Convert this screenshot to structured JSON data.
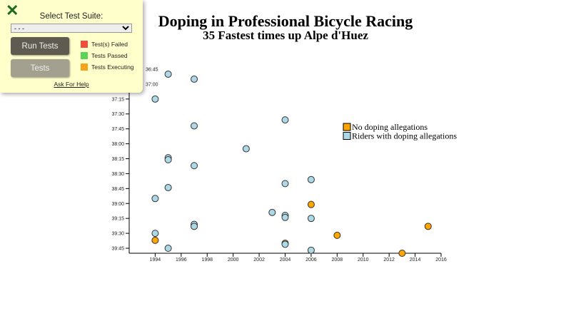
{
  "title": "Doping in Professional Bicycle Racing",
  "subtitle": "35 Fastest times up Alpe d'Huez",
  "test_panel": {
    "close_icon": "x-icon",
    "select_label": "Select Test Suite:",
    "select_value": "- - -",
    "run_label": "Run Tests",
    "tests_label": "Tests",
    "legend": [
      {
        "label": "Test(s) Failed",
        "color": "#f24c3a"
      },
      {
        "label": "Tests Passed",
        "color": "#5bd35b"
      },
      {
        "label": "Tests Executing",
        "color": "#f5a31a"
      }
    ],
    "help_label": "Ask For Help"
  },
  "chart_data": {
    "type": "scatter",
    "title": "Doping in Professional Bicycle Racing",
    "subtitle": "35 Fastest times up Alpe d'Huez",
    "xlim": [
      1992,
      2016
    ],
    "ylim": [
      "36:40",
      "39:50"
    ],
    "y_reversed": true,
    "x_ticks": [
      "1994",
      "1996",
      "1998",
      "2000",
      "2002",
      "2004",
      "2006",
      "2008",
      "2010",
      "2012",
      "2014",
      "2016"
    ],
    "y_ticks": [
      "36:45",
      "37:00",
      "37:15",
      "37:30",
      "37:45",
      "38:00",
      "38:15",
      "38:30",
      "38:45",
      "39:00",
      "39:15",
      "39:30",
      "39:45"
    ],
    "legend_position": "right",
    "legend": [
      {
        "label": "No doping allegations",
        "color": "#ffa500"
      },
      {
        "label": "Riders with doping allegations",
        "color": "#add8e6"
      }
    ],
    "points": [
      {
        "year": 1995,
        "time": "36:50",
        "doping": true
      },
      {
        "year": 1997,
        "time": "36:55",
        "doping": true
      },
      {
        "year": 1994,
        "time": "37:15",
        "doping": true
      },
      {
        "year": 2004,
        "time": "37:36",
        "doping": true
      },
      {
        "year": 1997,
        "time": "37:42",
        "doping": true
      },
      {
        "year": 2001,
        "time": "38:05",
        "doping": true
      },
      {
        "year": 1995,
        "time": "38:14",
        "doping": true
      },
      {
        "year": 1995,
        "time": "38:16",
        "doping": true
      },
      {
        "year": 1997,
        "time": "38:22",
        "doping": true
      },
      {
        "year": 2006,
        "time": "38:36",
        "doping": true
      },
      {
        "year": 2004,
        "time": "38:40",
        "doping": true
      },
      {
        "year": 1995,
        "time": "38:44",
        "doping": true
      },
      {
        "year": 1994,
        "time": "38:55",
        "doping": true
      },
      {
        "year": 2006,
        "time": "39:01",
        "doping": false
      },
      {
        "year": 2003,
        "time": "39:09",
        "doping": true
      },
      {
        "year": 2004,
        "time": "39:12",
        "doping": true
      },
      {
        "year": 2004,
        "time": "39:14",
        "doping": true
      },
      {
        "year": 2006,
        "time": "39:15",
        "doping": true
      },
      {
        "year": 1997,
        "time": "39:21",
        "doping": true
      },
      {
        "year": 1997,
        "time": "39:23",
        "doping": true
      },
      {
        "year": 2015,
        "time": "39:23",
        "doping": false
      },
      {
        "year": 1994,
        "time": "39:30",
        "doping": true
      },
      {
        "year": 2008,
        "time": "39:32",
        "doping": false
      },
      {
        "year": 1994,
        "time": "39:37",
        "doping": false
      },
      {
        "year": 2004,
        "time": "39:40",
        "doping": false
      },
      {
        "year": 2004,
        "time": "39:41",
        "doping": true
      },
      {
        "year": 1995,
        "time": "39:45",
        "doping": true
      },
      {
        "year": 2006,
        "time": "39:47",
        "doping": true
      },
      {
        "year": 2013,
        "time": "39:50",
        "doping": false
      }
    ]
  }
}
